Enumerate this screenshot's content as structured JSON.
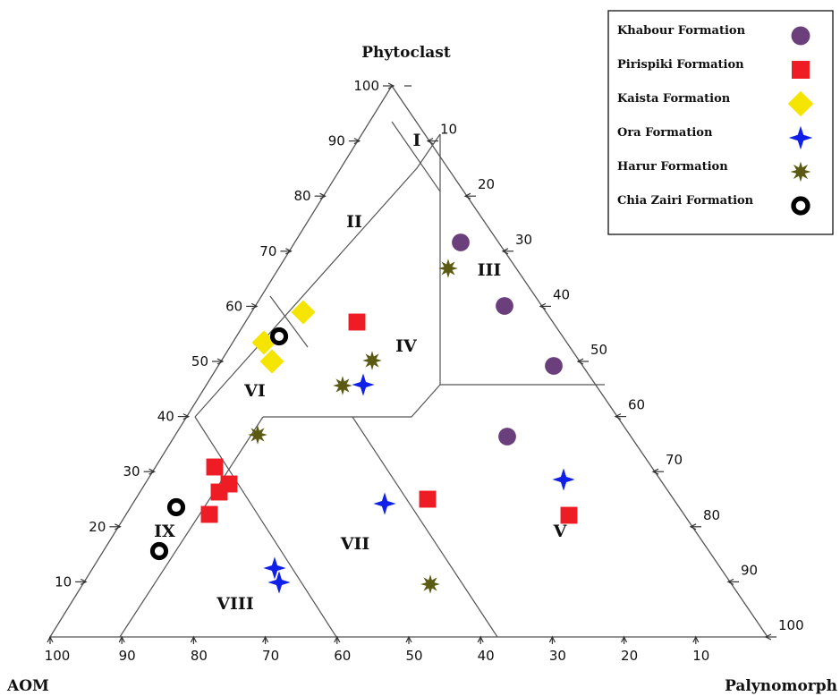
{
  "chart_data": {
    "type": "ternary-scatter",
    "axes": {
      "top": "Phytoclast",
      "left": "AOM",
      "right": "Palynomorph"
    },
    "ticks": {
      "phytoclast": [
        "10",
        "20",
        "30",
        "40",
        "50",
        "60",
        "70",
        "80",
        "90",
        "100"
      ],
      "palynomorph": [
        "10",
        "20",
        "30",
        "40",
        "50",
        "60",
        "70",
        "80",
        "90",
        "100"
      ],
      "aom": [
        "100",
        "90",
        "80",
        "70",
        "60",
        "50",
        "40",
        "30",
        "20",
        "10"
      ]
    },
    "fields": [
      "I",
      "II",
      "III",
      "IV",
      "V",
      "VI",
      "VII",
      "VIII",
      "IX"
    ],
    "series": [
      {
        "name": "Khabour Formation",
        "marker": "circle",
        "color": "#6b3f7c",
        "points": [
          {
            "phyto": 70,
            "aom": 12
          },
          {
            "phyto": 58,
            "aom": 11
          },
          {
            "phyto": 48,
            "aom": 8
          },
          {
            "phyto": 36,
            "aom": 28
          }
        ]
      },
      {
        "name": "Pirispiki Formation",
        "marker": "square",
        "color": "#ee1c24",
        "points": [
          {
            "phyto": 57,
            "aom": 30
          },
          {
            "phyto": 25,
            "aom": 40
          },
          {
            "phyto": 18,
            "aom": 17
          },
          {
            "phyto": 30,
            "aom": 63
          },
          {
            "phyto": 27,
            "aom": 63
          },
          {
            "phyto": 26,
            "aom": 65
          },
          {
            "phyto": 22,
            "aom": 68
          }
        ]
      },
      {
        "name": "Kaista Formation",
        "marker": "diamond",
        "color": "#f4e400",
        "points": [
          {
            "phyto": 57,
            "aom": 37
          },
          {
            "phyto": 53,
            "aom": 42
          },
          {
            "phyto": 50,
            "aom": 44
          }
        ]
      },
      {
        "name": "Ora Formation",
        "marker": "star4",
        "color": "#1020e8",
        "points": [
          {
            "phyto": 45,
            "aom": 32
          },
          {
            "phyto": 24,
            "aom": 43
          },
          {
            "phyto": 28,
            "aom": 17
          },
          {
            "phyto": 13,
            "aom": 59
          },
          {
            "phyto": 10,
            "aom": 61
          }
        ]
      },
      {
        "name": "Harur Formation",
        "marker": "star8",
        "color": "#5b5a12",
        "points": [
          {
            "phyto": 66,
            "aom": 21
          },
          {
            "phyto": 49,
            "aom": 34
          },
          {
            "phyto": 45,
            "aom": 37
          },
          {
            "phyto": 36,
            "aom": 48
          },
          {
            "phyto": 8,
            "aom": 46
          }
        ]
      },
      {
        "name": "Chia Zairi Formation",
        "marker": "ring",
        "color": "#000000",
        "points": [
          {
            "phyto": 54,
            "aom": 39
          },
          {
            "phyto": 24,
            "aom": 71
          },
          {
            "phyto": 15,
            "aom": 77
          }
        ]
      }
    ]
  }
}
